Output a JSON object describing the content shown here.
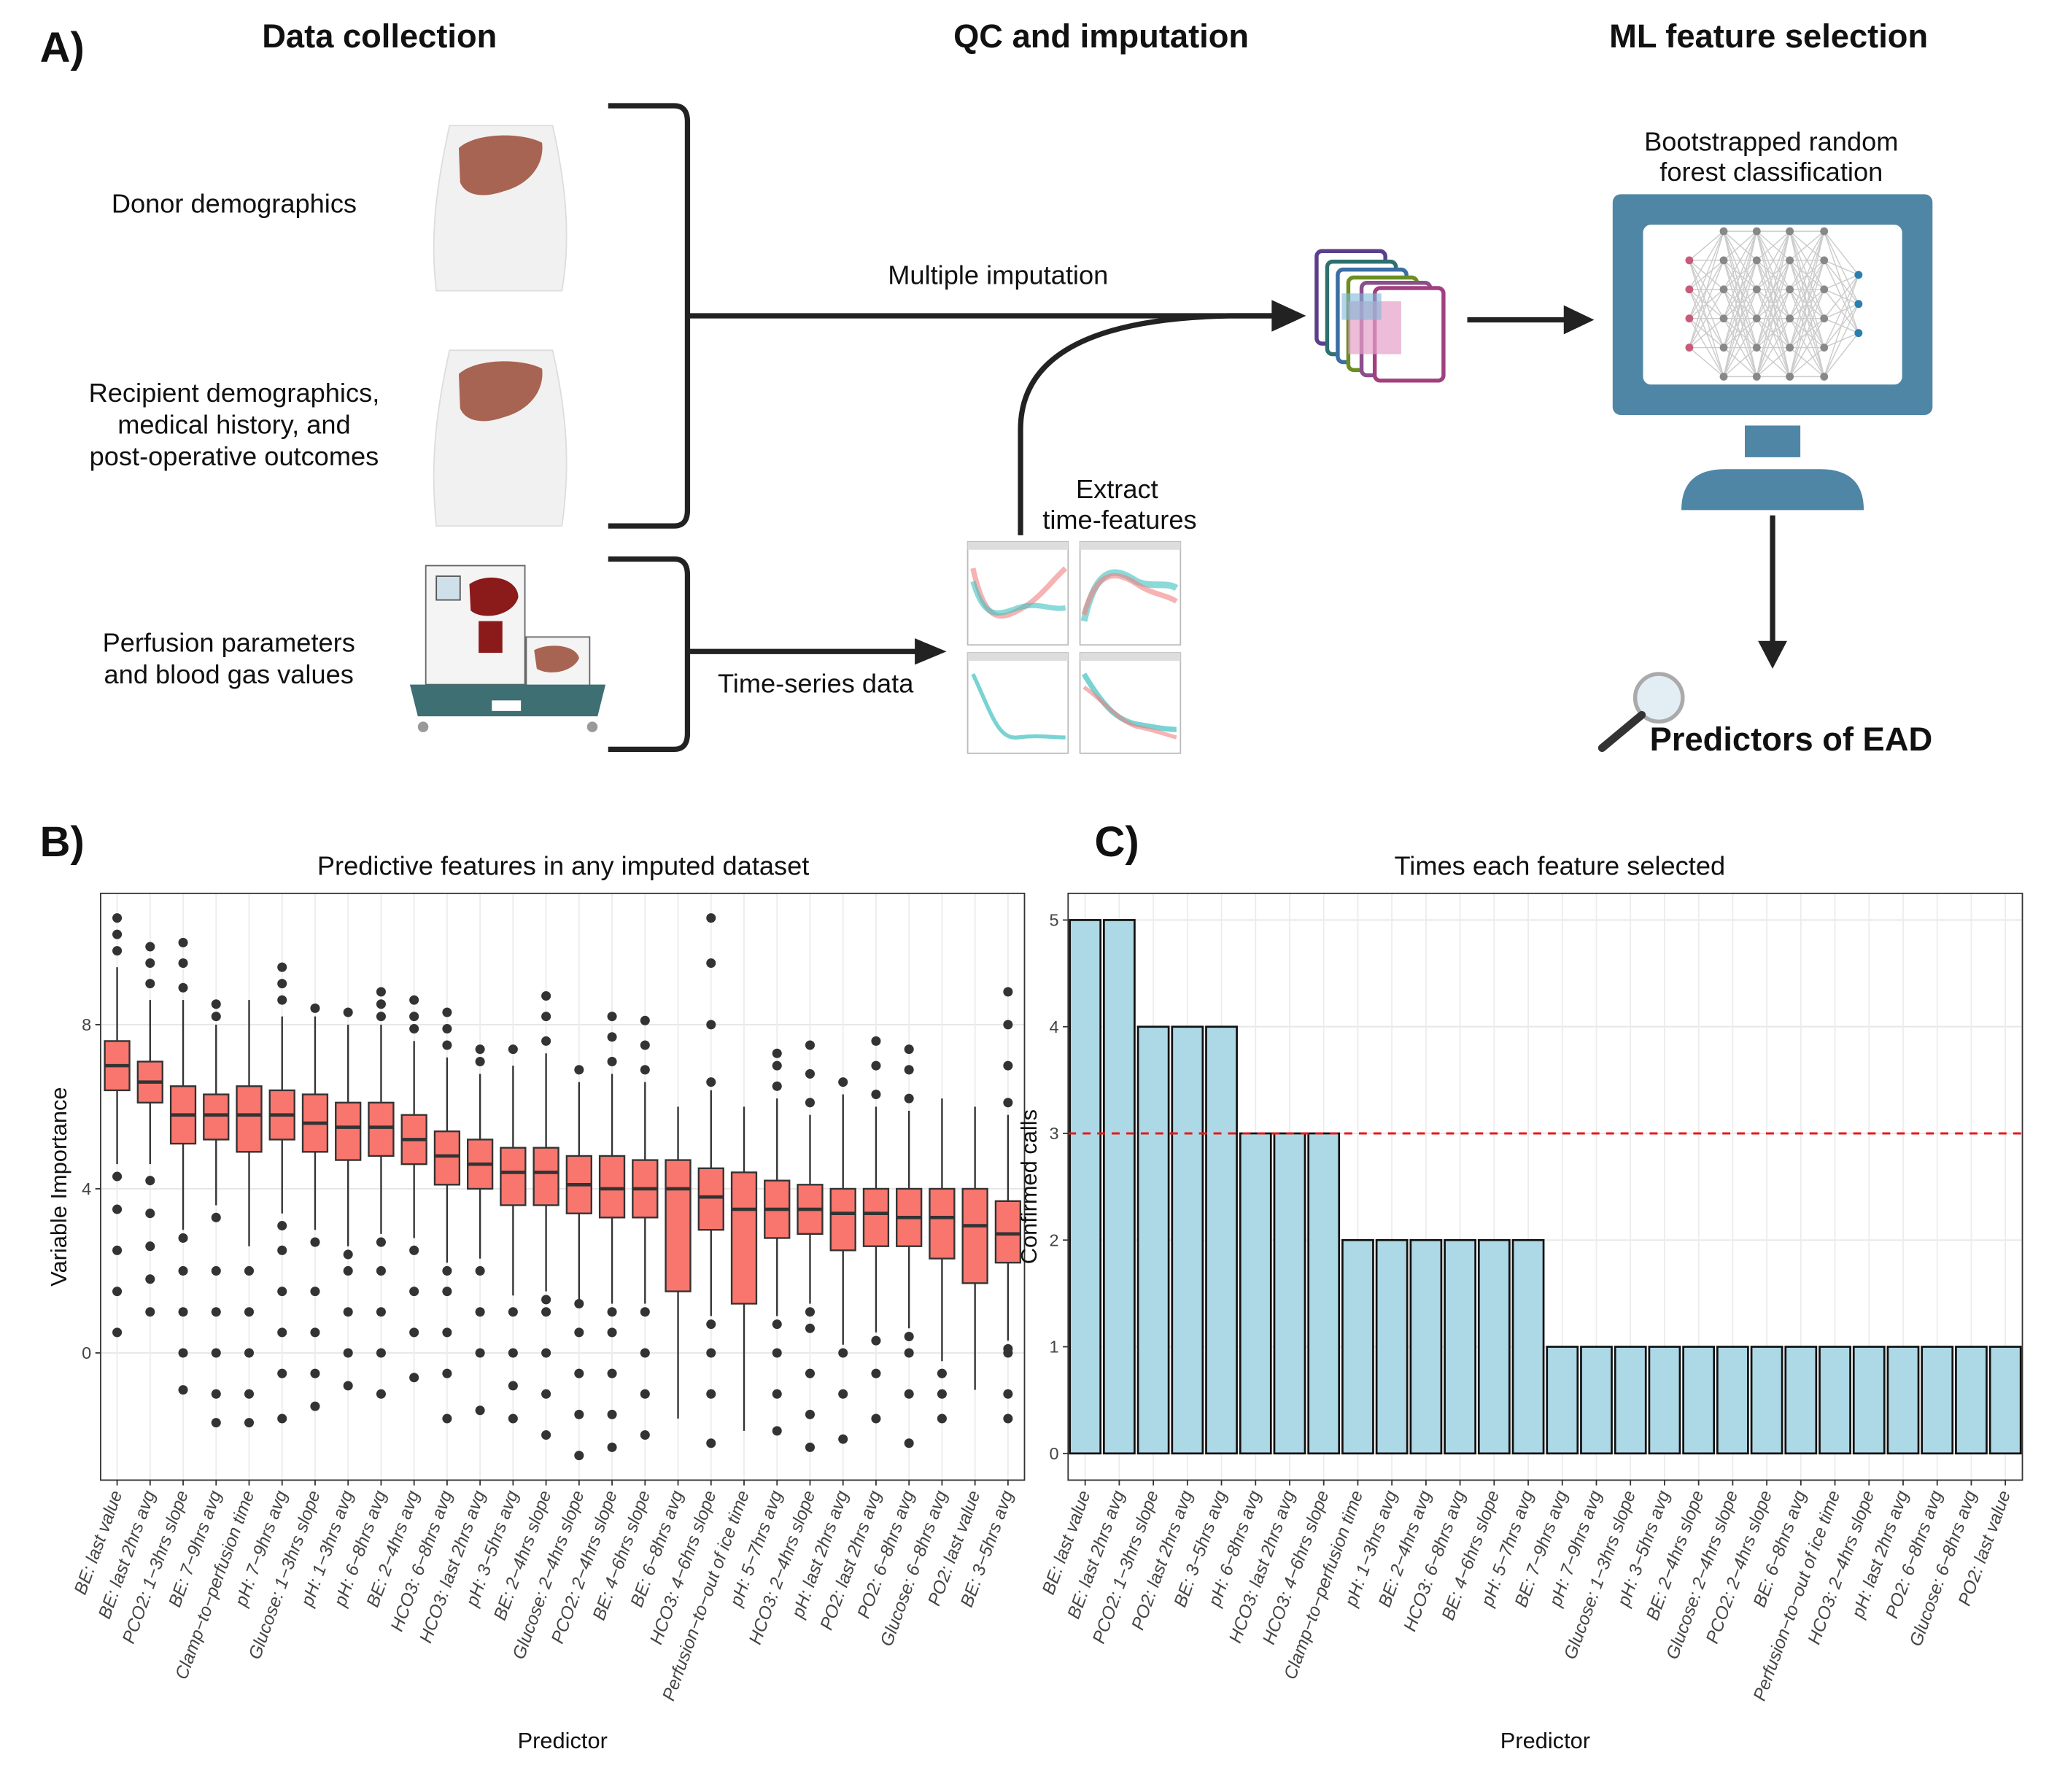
{
  "panel_a": {
    "label": "A)",
    "headings": [
      "Data collection",
      "QC and imputation",
      "ML feature selection"
    ],
    "donor": [
      "Donor demographics"
    ],
    "recipient": [
      "Recipient demographics,",
      "medical history, and",
      "post-operative outcomes"
    ],
    "perfusion": [
      "Perfusion parameters",
      "and blood gas values"
    ],
    "multiple_imputation": "Multiple imputation",
    "time_series": "Time-series data",
    "extract": [
      "Extract",
      "time-features"
    ],
    "classifier": [
      "Bootstrapped random",
      "forest classification"
    ],
    "result": "Predictors of EAD"
  },
  "chart_data": [
    {
      "type": "box",
      "panel_label": "B)",
      "title": "Predictive features in any imputed dataset",
      "x_label": "Predictor",
      "y_label": "Variable Importance",
      "color": "#f8766d",
      "outlier_color": "#333333",
      "grid": true,
      "ylim": [
        -3.1,
        11.2
      ],
      "yticks": [
        0,
        4,
        8
      ],
      "categories": [
        "BE: last value",
        "BE: last 2hrs avg",
        "PCO2: 1−3hrs slope",
        "BE: 7−9hrs avg",
        "Clamp−to−perfusion time",
        "pH: 7−9hrs avg",
        "Glucose: 1−3hrs slope",
        "pH: 1−3hrs avg",
        "pH: 6−8hrs avg",
        "BE: 2−4hrs avg",
        "HCO3: 6−8hrs avg",
        "HCO3: last 2hrs avg",
        "pH: 3−5hrs avg",
        "BE: 2−4hrs slope",
        "Glucose: 2−4hrs slope",
        "PCO2: 2−4hrs slope",
        "BE: 4−6hrs slope",
        "BE: 6−8hrs avg",
        "HCO3: 4−6hrs slope",
        "Perfusion−to−out of ice time",
        "pH: 5−7hrs avg",
        "HCO3: 2−4hrs slope",
        "pH: last 2hrs avg",
        "PO2: last 2hrs avg",
        "PO2: 6−8hrs avg",
        "Glucose: 6−8hrs avg",
        "PO2: last value",
        "BE: 3−5hrs avg"
      ],
      "boxes": [
        {
          "low": 4.6,
          "q1": 6.4,
          "median": 7.0,
          "q3": 7.6,
          "high": 9.4,
          "outliers": [
            0.5,
            1.5,
            2.5,
            3.5,
            4.3,
            9.8,
            10.2,
            10.6
          ]
        },
        {
          "low": 4.6,
          "q1": 6.1,
          "median": 6.6,
          "q3": 7.1,
          "high": 8.6,
          "outliers": [
            1.0,
            1.8,
            2.6,
            3.4,
            4.2,
            9.0,
            9.5,
            9.9
          ]
        },
        {
          "low": 3.0,
          "q1": 5.1,
          "median": 5.8,
          "q3": 6.5,
          "high": 8.6,
          "outliers": [
            -0.9,
            0,
            1,
            2,
            2.8,
            8.9,
            9.5,
            10
          ]
        },
        {
          "low": 3.6,
          "q1": 5.2,
          "median": 5.8,
          "q3": 6.3,
          "high": 8.0,
          "outliers": [
            -1.7,
            -1,
            0,
            1,
            2,
            3.3,
            8.2,
            8.5
          ]
        },
        {
          "low": 2.6,
          "q1": 4.9,
          "median": 5.8,
          "q3": 6.5,
          "high": 8.6,
          "outliers": [
            -1.7,
            -1,
            0,
            1,
            2
          ]
        },
        {
          "low": 3.4,
          "q1": 5.2,
          "median": 5.8,
          "q3": 6.4,
          "high": 8.2,
          "outliers": [
            -1.6,
            -0.5,
            0.5,
            1.5,
            2.5,
            3.1,
            8.6,
            9.0,
            9.4
          ]
        },
        {
          "low": 3.0,
          "q1": 4.9,
          "median": 5.6,
          "q3": 6.3,
          "high": 8.2,
          "outliers": [
            -1.3,
            -0.5,
            0.5,
            1.5,
            2.7,
            8.4
          ]
        },
        {
          "low": 2.6,
          "q1": 4.7,
          "median": 5.5,
          "q3": 6.1,
          "high": 8.0,
          "outliers": [
            -0.8,
            0,
            1,
            2,
            2.4,
            8.3
          ]
        },
        {
          "low": 2.9,
          "q1": 4.8,
          "median": 5.5,
          "q3": 6.1,
          "high": 8.0,
          "outliers": [
            -1,
            0,
            1,
            2,
            2.7,
            8.2,
            8.5,
            8.8
          ]
        },
        {
          "low": 2.8,
          "q1": 4.6,
          "median": 5.2,
          "q3": 5.8,
          "high": 7.6,
          "outliers": [
            -0.6,
            0.5,
            1.5,
            2.5,
            7.9,
            8.2,
            8.6
          ]
        },
        {
          "low": 2.2,
          "q1": 4.1,
          "median": 4.8,
          "q3": 5.4,
          "high": 7.2,
          "outliers": [
            -1.6,
            -0.5,
            0.5,
            1.5,
            2,
            7.5,
            7.9,
            8.3
          ]
        },
        {
          "low": 2.3,
          "q1": 4.0,
          "median": 4.6,
          "q3": 5.2,
          "high": 6.8,
          "outliers": [
            -1.4,
            0,
            1,
            2,
            7.1,
            7.4
          ]
        },
        {
          "low": 1.4,
          "q1": 3.6,
          "median": 4.4,
          "q3": 5.0,
          "high": 7.0,
          "outliers": [
            -1.6,
            -0.8,
            0,
            1,
            7.4
          ]
        },
        {
          "low": 1.5,
          "q1": 3.6,
          "median": 4.4,
          "q3": 5.0,
          "high": 7.3,
          "outliers": [
            -2,
            -1,
            0,
            1,
            1.3,
            7.6,
            8.2,
            8.7
          ]
        },
        {
          "low": 1.3,
          "q1": 3.4,
          "median": 4.1,
          "q3": 4.8,
          "high": 6.6,
          "outliers": [
            -2.5,
            -1.5,
            -0.5,
            0.5,
            1.2,
            6.9
          ]
        },
        {
          "low": 1.2,
          "q1": 3.3,
          "median": 4.0,
          "q3": 4.8,
          "high": 6.8,
          "outliers": [
            -2.3,
            -1.5,
            -0.5,
            0.5,
            1,
            7.1,
            7.7,
            8.2
          ]
        },
        {
          "low": 1.2,
          "q1": 3.3,
          "median": 4.0,
          "q3": 4.7,
          "high": 6.6,
          "outliers": [
            -2,
            -1,
            0,
            1,
            6.9,
            7.5,
            8.1
          ]
        },
        {
          "low": -1.6,
          "q1": 1.5,
          "median": 4.0,
          "q3": 4.7,
          "high": 6.0,
          "outliers": []
        },
        {
          "low": 0.9,
          "q1": 3.0,
          "median": 3.8,
          "q3": 4.5,
          "high": 6.4,
          "outliers": [
            -2.2,
            -1,
            0,
            0.7,
            6.6,
            8,
            9.5,
            10.6
          ]
        },
        {
          "low": -1.9,
          "q1": 1.2,
          "median": 3.5,
          "q3": 4.4,
          "high": 6.0,
          "outliers": []
        },
        {
          "low": 0.9,
          "q1": 2.8,
          "median": 3.5,
          "q3": 4.2,
          "high": 6.2,
          "outliers": [
            -1.9,
            -1,
            0,
            0.7,
            6.5,
            7,
            7.3
          ]
        },
        {
          "low": 1.2,
          "q1": 2.9,
          "median": 3.5,
          "q3": 4.1,
          "high": 5.8,
          "outliers": [
            -2.3,
            -1.5,
            -0.5,
            0.6,
            1,
            6.1,
            6.8,
            7.5
          ]
        },
        {
          "low": 0.2,
          "q1": 2.5,
          "median": 3.4,
          "q3": 4.0,
          "high": 6.3,
          "outliers": [
            -2.1,
            -1,
            0,
            6.6
          ]
        },
        {
          "low": 0.5,
          "q1": 2.6,
          "median": 3.4,
          "q3": 4.0,
          "high": 6.0,
          "outliers": [
            -1.6,
            -0.5,
            0.3,
            6.3,
            7,
            7.6
          ]
        },
        {
          "low": 0.6,
          "q1": 2.6,
          "median": 3.3,
          "q3": 4.0,
          "high": 5.9,
          "outliers": [
            -2.2,
            -1,
            0,
            0.4,
            6.2,
            6.9,
            7.4
          ]
        },
        {
          "low": -0.2,
          "q1": 2.3,
          "median": 3.3,
          "q3": 4.0,
          "high": 6.2,
          "outliers": [
            -1.6,
            -1,
            -0.5
          ]
        },
        {
          "low": -0.9,
          "q1": 1.7,
          "median": 3.1,
          "q3": 4.0,
          "high": 6.0,
          "outliers": []
        },
        {
          "low": 0.3,
          "q1": 2.2,
          "median": 2.9,
          "q3": 3.7,
          "high": 5.8,
          "outliers": [
            -1.6,
            -1,
            0,
            0.1,
            6.1,
            7,
            8,
            8.8
          ]
        }
      ]
    },
    {
      "type": "bar",
      "panel_label": "C)",
      "title": "Times each feature selected",
      "x_label": "Predictor",
      "y_label": "Confirmed calls",
      "color": "#add8e6",
      "grid": true,
      "ylim": [
        -0.25,
        5.25
      ],
      "yticks": [
        0,
        1,
        2,
        3,
        4,
        5
      ],
      "hline": 3,
      "hline_color": "#e41a1c",
      "categories": [
        "BE: last value",
        "BE: last 2hrs avg",
        "PCO2: 1−3hrs slope",
        "PO2: last 2hrs avg",
        "BE: 3−5hrs avg",
        "pH: 6−8hrs avg",
        "HCO3: last 2hrs avg",
        "HCO3: 4−6hrs slope",
        "Clamp−to−perfusion time",
        "pH: 1−3hrs avg",
        "BE: 2−4hrs avg",
        "HCO3: 6−8hrs avg",
        "BE: 4−6hrs slope",
        "pH: 5−7hrs avg",
        "BE: 7−9hrs avg",
        "pH: 7−9hrs avg",
        "Glucose: 1−3hrs slope",
        "pH: 3−5hrs avg",
        "BE: 2−4hrs slope",
        "Glucose: 2−4hrs slope",
        "PCO2: 2−4hrs slope",
        "BE: 6−8hrs avg",
        "Perfusion−to−out of ice time",
        "HCO3: 2−4hrs slope",
        "pH: last 2hrs avg",
        "PO2: 6−8hrs avg",
        "Glucose: 6−8hrs avg",
        "PO2: last value"
      ],
      "values": [
        5,
        5,
        4,
        4,
        4,
        3,
        3,
        3,
        2,
        2,
        2,
        2,
        2,
        2,
        1,
        1,
        1,
        1,
        1,
        1,
        1,
        1,
        1,
        1,
        1,
        1,
        1,
        1
      ]
    }
  ]
}
